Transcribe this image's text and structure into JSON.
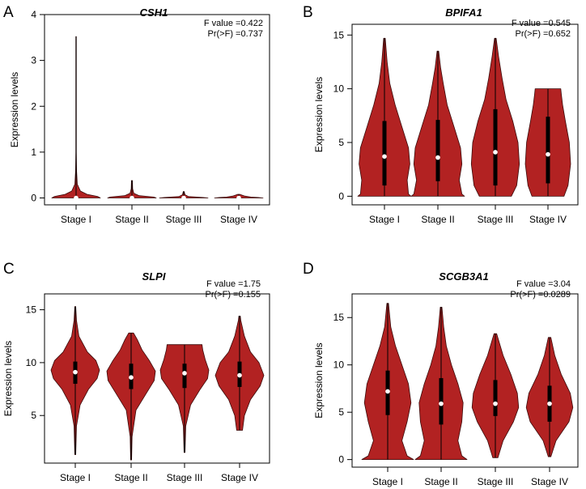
{
  "figure": {
    "violin_fill": "#b22222",
    "violin_stroke": "#3a0a0a",
    "box_color": "#000000",
    "median_color": "#ffffff"
  },
  "chart_data": [
    {
      "panel_label": "A",
      "type": "violin",
      "title": "CSH1",
      "xlabel": "",
      "ylabel": "Expression levels",
      "ylim": [
        -0.15,
        4.0
      ],
      "yticks": [
        0,
        1,
        2,
        3,
        4
      ],
      "stats": [
        "F value =0.422",
        "Pr(>F) =0.737"
      ],
      "categories": [
        "Stage I",
        "Stage II",
        "Stage III",
        "Stage IV"
      ],
      "groups": [
        {
          "min": 0,
          "q1": 0,
          "median": 0.0,
          "q3": 0.0,
          "max": 3.52,
          "profile": [
            [
              0,
              1.0
            ],
            [
              0.03,
              0.9
            ],
            [
              0.08,
              0.45
            ],
            [
              0.15,
              0.18
            ],
            [
              0.3,
              0.05
            ],
            [
              0.6,
              0.02
            ],
            [
              1.0,
              0.01
            ],
            [
              3.52,
              0.01
            ]
          ]
        },
        {
          "min": 0,
          "q1": 0,
          "median": 0.0,
          "q3": 0.0,
          "max": 0.38,
          "profile": [
            [
              0,
              1.0
            ],
            [
              0.02,
              0.9
            ],
            [
              0.05,
              0.3
            ],
            [
              0.1,
              0.08
            ],
            [
              0.2,
              0.03
            ],
            [
              0.38,
              0.02
            ]
          ]
        },
        {
          "min": 0,
          "q1": 0,
          "median": 0.0,
          "q3": 0.0,
          "max": 0.14,
          "profile": [
            [
              0,
              1.0
            ],
            [
              0.01,
              0.8
            ],
            [
              0.03,
              0.2
            ],
            [
              0.07,
              0.05
            ],
            [
              0.14,
              0.02
            ]
          ]
        },
        {
          "min": 0,
          "q1": 0,
          "median": 0.0,
          "q3": 0.0,
          "max": 0.08,
          "profile": [
            [
              0,
              1.0
            ],
            [
              0.01,
              0.8
            ],
            [
              0.02,
              0.5
            ],
            [
              0.04,
              0.25
            ],
            [
              0.08,
              0.04
            ]
          ]
        }
      ]
    },
    {
      "panel_label": "B",
      "type": "violin",
      "title": "BPIFA1",
      "xlabel": "",
      "ylabel": "Expression levels",
      "ylim": [
        -0.8,
        16.0
      ],
      "yticks": [
        0,
        5,
        10,
        15
      ],
      "stats": [
        "F value =0.545",
        "Pr(>F) =0.652"
      ],
      "categories": [
        "Stage I",
        "Stage II",
        "Stage III",
        "Stage IV"
      ],
      "groups": [
        {
          "min": 0,
          "q1": 1.0,
          "median": 3.7,
          "q3": 7.0,
          "max": 14.7,
          "profile": [
            [
              0,
              1.0
            ],
            [
              0.2,
              0.9
            ],
            [
              1.5,
              0.85
            ],
            [
              3,
              0.95
            ],
            [
              4.5,
              0.9
            ],
            [
              6.5,
              0.65
            ],
            [
              8.5,
              0.4
            ],
            [
              10.5,
              0.2
            ],
            [
              12.5,
              0.1
            ],
            [
              14.7,
              0.03
            ]
          ]
        },
        {
          "min": 0,
          "q1": 1.4,
          "median": 3.6,
          "q3": 7.1,
          "max": 13.5,
          "profile": [
            [
              0,
              1.0
            ],
            [
              0.2,
              0.9
            ],
            [
              1.5,
              0.8
            ],
            [
              3,
              0.9
            ],
            [
              4.5,
              0.85
            ],
            [
              6.5,
              0.6
            ],
            [
              8.5,
              0.35
            ],
            [
              10.5,
              0.2
            ],
            [
              12,
              0.1
            ],
            [
              13.5,
              0.03
            ]
          ]
        },
        {
          "min": 0,
          "q1": 1.0,
          "median": 4.1,
          "q3": 8.1,
          "max": 14.7,
          "profile": [
            [
              0,
              0.6
            ],
            [
              1,
              0.8
            ],
            [
              3,
              0.9
            ],
            [
              5,
              0.85
            ],
            [
              7,
              0.65
            ],
            [
              9,
              0.4
            ],
            [
              11,
              0.25
            ],
            [
              13,
              0.12
            ],
            [
              14.7,
              0.03
            ]
          ]
        },
        {
          "min": 0,
          "q1": 1.2,
          "median": 3.9,
          "q3": 7.4,
          "max": 10.0,
          "profile": [
            [
              0,
              0.6
            ],
            [
              1,
              0.75
            ],
            [
              3,
              0.85
            ],
            [
              5,
              0.8
            ],
            [
              7,
              0.65
            ],
            [
              8.5,
              0.55
            ],
            [
              9.5,
              0.5
            ],
            [
              10.0,
              0.48
            ]
          ]
        }
      ]
    },
    {
      "panel_label": "C",
      "type": "violin",
      "title": "SLPI",
      "xlabel": "",
      "ylabel": "Expression levels",
      "ylim": [
        0.5,
        16.5
      ],
      "yticks": [
        5,
        10,
        15
      ],
      "stats": [
        "F value =1.75",
        "Pr(>F) =0.155"
      ],
      "categories": [
        "Stage I",
        "Stage II",
        "Stage III",
        "Stage IV"
      ],
      "groups": [
        {
          "min": 1.3,
          "q1": 8.0,
          "median": 9.1,
          "q3": 10.1,
          "max": 15.3,
          "profile": [
            [
              1.3,
              0.02
            ],
            [
              4,
              0.05
            ],
            [
              6,
              0.2
            ],
            [
              7.5,
              0.55
            ],
            [
              8.5,
              0.9
            ],
            [
              9.3,
              1.0
            ],
            [
              10.2,
              0.85
            ],
            [
              11,
              0.5
            ],
            [
              12.5,
              0.15
            ],
            [
              14,
              0.05
            ],
            [
              15.3,
              0.02
            ]
          ]
        },
        {
          "min": 0.8,
          "q1": 7.5,
          "median": 8.6,
          "q3": 9.9,
          "max": 12.8,
          "profile": [
            [
              0.8,
              0.02
            ],
            [
              3,
              0.04
            ],
            [
              5.5,
              0.2
            ],
            [
              7,
              0.6
            ],
            [
              8.3,
              0.95
            ],
            [
              9.2,
              1.0
            ],
            [
              10.2,
              0.75
            ],
            [
              11.2,
              0.45
            ],
            [
              12.2,
              0.25
            ],
            [
              12.8,
              0.1
            ]
          ]
        },
        {
          "min": 1.5,
          "q1": 7.6,
          "median": 9.0,
          "q3": 9.9,
          "max": 11.7,
          "profile": [
            [
              1.5,
              0.02
            ],
            [
              4,
              0.05
            ],
            [
              6,
              0.25
            ],
            [
              7.5,
              0.65
            ],
            [
              8.5,
              0.95
            ],
            [
              9.3,
              1.0
            ],
            [
              10.3,
              0.85
            ],
            [
              11.2,
              0.75
            ],
            [
              11.7,
              0.72
            ]
          ]
        },
        {
          "min": 3.6,
          "q1": 7.7,
          "median": 8.8,
          "q3": 10.1,
          "max": 14.4,
          "profile": [
            [
              3.6,
              0.12
            ],
            [
              5,
              0.2
            ],
            [
              6.5,
              0.45
            ],
            [
              7.8,
              0.85
            ],
            [
              8.8,
              1.0
            ],
            [
              10,
              0.8
            ],
            [
              11,
              0.45
            ],
            [
              12.5,
              0.2
            ],
            [
              14,
              0.05
            ],
            [
              14.4,
              0.03
            ]
          ]
        }
      ]
    },
    {
      "panel_label": "D",
      "type": "violin",
      "title": "SCGB3A1",
      "xlabel": "",
      "ylabel": "Expression levels",
      "ylim": [
        -0.8,
        17.5
      ],
      "yticks": [
        0,
        5,
        10,
        15
      ],
      "stats": [
        "F value =3.04",
        "Pr(>F) =0.0289"
      ],
      "categories": [
        "Stage I",
        "Stage II",
        "Stage III",
        "Stage IV"
      ],
      "groups": [
        {
          "min": 0,
          "q1": 4.7,
          "median": 7.2,
          "q3": 9.4,
          "max": 16.5,
          "profile": [
            [
              0,
              1.0
            ],
            [
              0.4,
              0.75
            ],
            [
              2,
              0.55
            ],
            [
              4,
              0.75
            ],
            [
              6,
              0.9
            ],
            [
              8,
              0.8
            ],
            [
              10,
              0.55
            ],
            [
              12,
              0.3
            ],
            [
              14,
              0.12
            ],
            [
              16.5,
              0.03
            ]
          ]
        },
        {
          "min": 0,
          "q1": 3.7,
          "median": 5.9,
          "q3": 8.6,
          "max": 16.1,
          "profile": [
            [
              0,
              1.0
            ],
            [
              0.4,
              0.8
            ],
            [
              2,
              0.65
            ],
            [
              4,
              0.8
            ],
            [
              6,
              0.85
            ],
            [
              8,
              0.65
            ],
            [
              10,
              0.4
            ],
            [
              12,
              0.2
            ],
            [
              14,
              0.1
            ],
            [
              16.1,
              0.03
            ]
          ]
        },
        {
          "min": 0.2,
          "q1": 4.6,
          "median": 5.9,
          "q3": 8.4,
          "max": 13.3,
          "profile": [
            [
              0.2,
              0.1
            ],
            [
              2,
              0.3
            ],
            [
              4,
              0.7
            ],
            [
              5.5,
              0.9
            ],
            [
              7,
              0.85
            ],
            [
              9,
              0.6
            ],
            [
              11,
              0.3
            ],
            [
              13.3,
              0.05
            ]
          ]
        },
        {
          "min": 0.3,
          "q1": 4.0,
          "median": 5.9,
          "q3": 7.8,
          "max": 12.9,
          "profile": [
            [
              0.3,
              0.05
            ],
            [
              2,
              0.25
            ],
            [
              4,
              0.75
            ],
            [
              5.5,
              0.9
            ],
            [
              7,
              0.8
            ],
            [
              9,
              0.45
            ],
            [
              11,
              0.2
            ],
            [
              12.9,
              0.05
            ]
          ]
        }
      ]
    }
  ]
}
